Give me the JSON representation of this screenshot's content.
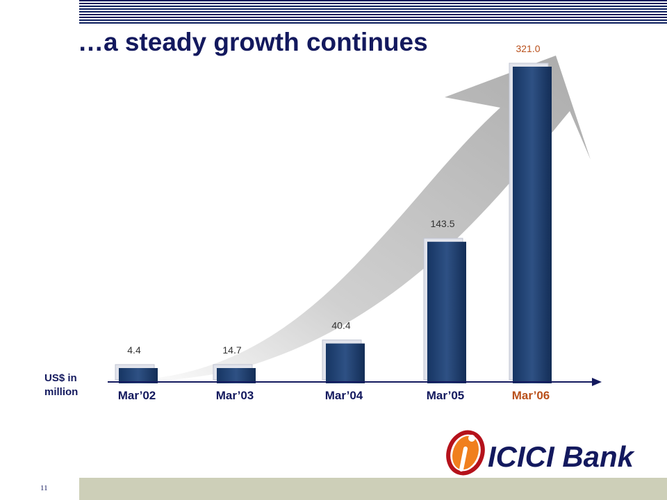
{
  "slide": {
    "title": "…a steady growth continues",
    "unit_label": "US$ in\nmillion",
    "page_number": "11"
  },
  "logo": {
    "text": "ICICI Bank",
    "colors": {
      "swirl": "#f07f1e",
      "text": "#13195e",
      "accent_ring": "#b5121b"
    }
  },
  "chart_data": {
    "type": "bar",
    "categories": [
      "Mar’02",
      "Mar’03",
      "Mar’04",
      "Mar’05",
      "Mar’06"
    ],
    "values": [
      4.4,
      14.7,
      40.4,
      143.5,
      321.0
    ],
    "value_labels": [
      "4.4",
      "14.7",
      "40.4",
      "143.5",
      "321.0"
    ],
    "highlight_index": 4,
    "ylim": [
      0,
      321
    ],
    "grid": false,
    "legend": "none",
    "colors": {
      "bar": "#1e3d6e",
      "highlight_label": "#b9501b",
      "category": "#13195e",
      "axis": "#13195e",
      "arrow": "#c6c6c6"
    }
  }
}
